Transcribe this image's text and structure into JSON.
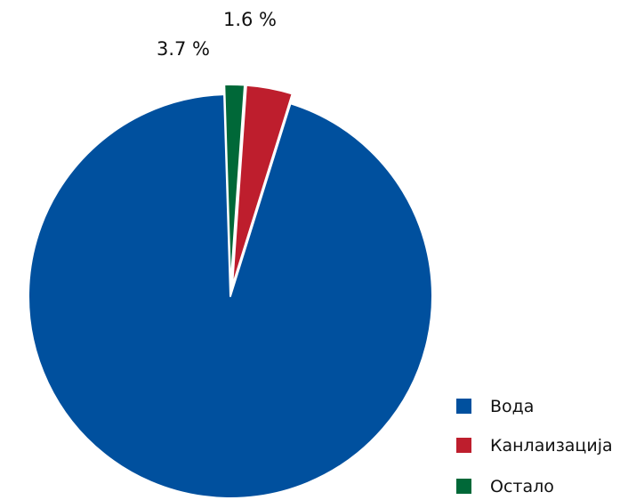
{
  "chart_data": {
    "type": "pie",
    "slices": [
      {
        "name": "Вода",
        "value": 94.7,
        "color": "#00509E",
        "label": ""
      },
      {
        "name": "Канлаизација",
        "value": 3.7,
        "color": "#BE1E2D",
        "label": "3.7 %"
      },
      {
        "name": "Остало",
        "value": 1.6,
        "color": "#006838",
        "label": "1.6 %"
      }
    ],
    "legend": {
      "placement": "bottom-right",
      "items": [
        "Вода",
        "Канлаизација",
        "Остало"
      ]
    }
  }
}
